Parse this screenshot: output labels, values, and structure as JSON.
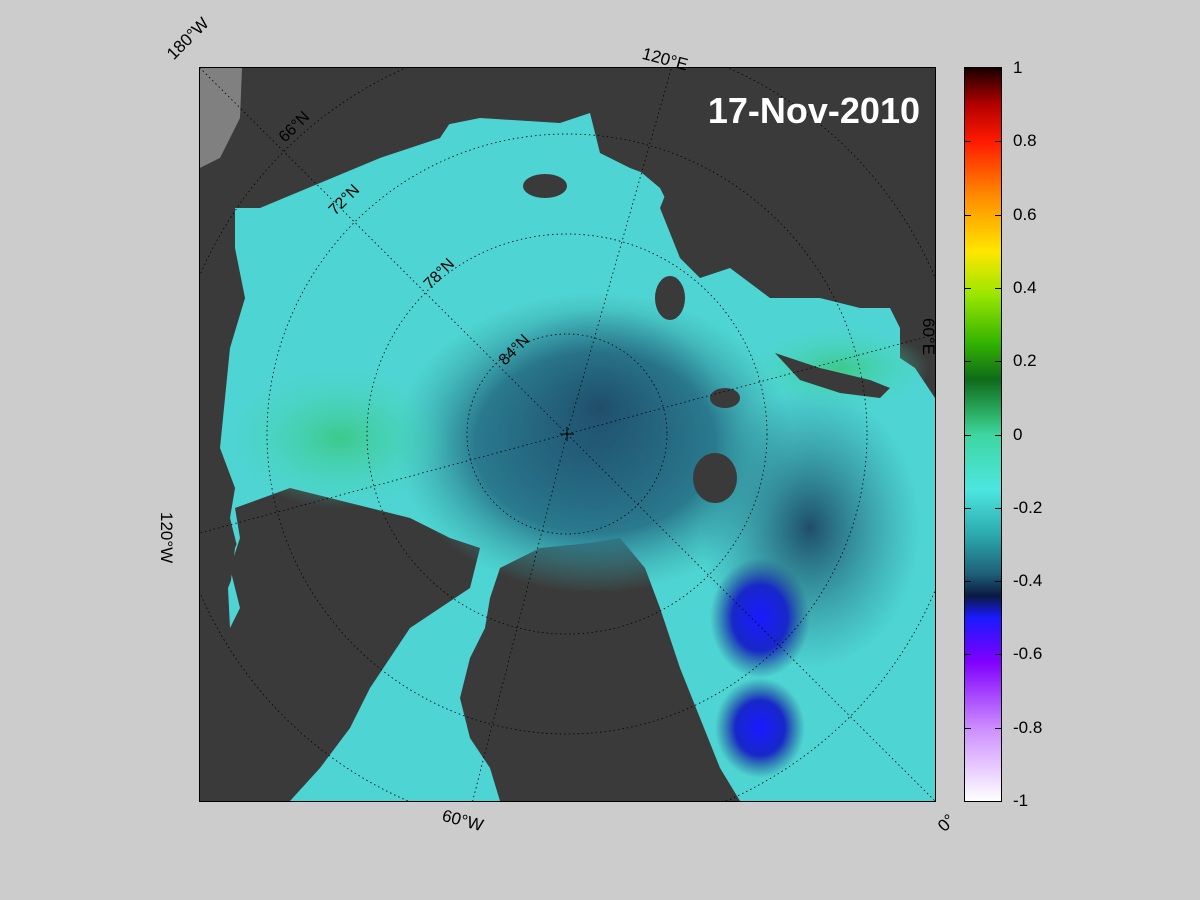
{
  "map": {
    "date_label": "17-Nov-2010",
    "longitude_labels": [
      "180°W",
      "120°E",
      "60°E",
      "0°",
      "60°W",
      "120°W"
    ],
    "latitude_labels": [
      "66°N",
      "72°N",
      "78°N",
      "84°N"
    ],
    "colors": {
      "land": "#3a3a3a",
      "masked_land": "#808080",
      "background": "#cccccc"
    }
  },
  "colorbar": {
    "ticks": [
      "1",
      "0.8",
      "0.6",
      "0.4",
      "0.2",
      "0",
      "-0.2",
      "-0.4",
      "-0.6",
      "-0.8",
      "-1"
    ],
    "range": [
      -1,
      1
    ],
    "colormap": [
      {
        "value": 1.0,
        "color": "#1a0000"
      },
      {
        "value": 0.9,
        "color": "#b30000"
      },
      {
        "value": 0.8,
        "color": "#ff1a00"
      },
      {
        "value": 0.65,
        "color": "#ff8c00"
      },
      {
        "value": 0.5,
        "color": "#ffe600"
      },
      {
        "value": 0.38,
        "color": "#99e600"
      },
      {
        "value": 0.25,
        "color": "#33b300"
      },
      {
        "value": 0.15,
        "color": "#0f6b1a"
      },
      {
        "value": 0.05,
        "color": "#2eb36b"
      },
      {
        "value": 0.0,
        "color": "#3dd6a0"
      },
      {
        "value": -0.15,
        "color": "#4de6e0"
      },
      {
        "value": -0.28,
        "color": "#2aa6aa"
      },
      {
        "value": -0.38,
        "color": "#1e5f78"
      },
      {
        "value": -0.44,
        "color": "#0a1a40"
      },
      {
        "value": -0.5,
        "color": "#1a1aff"
      },
      {
        "value": -0.62,
        "color": "#8000ff"
      },
      {
        "value": -0.8,
        "color": "#cc8cff"
      },
      {
        "value": -1.0,
        "color": "#ffffff"
      }
    ]
  }
}
